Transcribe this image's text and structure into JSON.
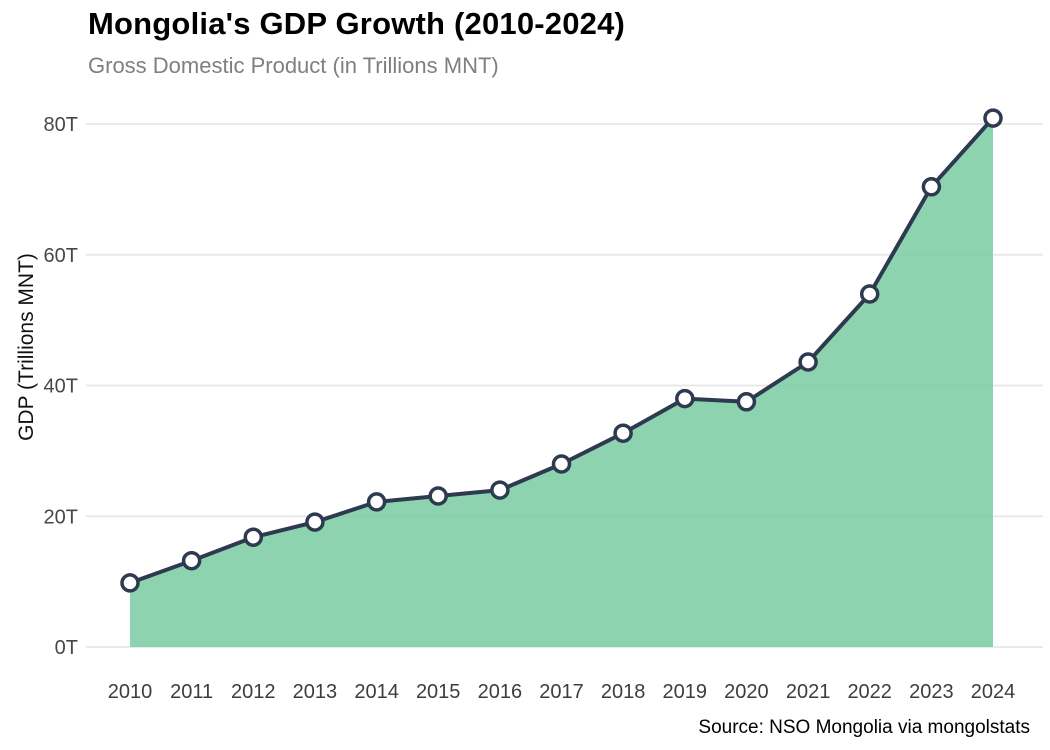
{
  "page": {
    "title": "Mongolia's GDP Growth (2010-2024)",
    "subtitle": "Gross Domestic Product (in Trillions MNT)",
    "source": "Source: NSO Mongolia via mongolstats"
  },
  "chart_data": {
    "type": "area",
    "title": "Mongolia's GDP Growth (2010-2024)",
    "subtitle": "Gross Domestic Product (in Trillions MNT)",
    "source": "Source: NSO Mongolia via mongolstats",
    "x": [
      "2010",
      "2011",
      "2012",
      "2013",
      "2014",
      "2015",
      "2016",
      "2017",
      "2018",
      "2019",
      "2020",
      "2021",
      "2022",
      "2023",
      "2024"
    ],
    "series": [
      {
        "name": "GDP (Trillions MNT)",
        "values": [
          9.8,
          13.2,
          16.8,
          19.1,
          22.2,
          23.1,
          24.0,
          28.0,
          32.7,
          38.0,
          37.5,
          43.6,
          54.0,
          70.4,
          80.9
        ]
      }
    ],
    "xlabel": "",
    "ylabel": "GDP (Trillions MNT)",
    "ylim": [
      0,
      84
    ],
    "yticks": {
      "values": [
        0,
        20,
        40,
        60,
        80
      ],
      "labels": [
        "0T",
        "20T",
        "40T",
        "60T",
        "80T"
      ]
    },
    "grid": "horizontal-only",
    "legend": "none",
    "marker": "open-circle",
    "colors": {
      "area_fill": "#7acba1",
      "line": "#2d3a4f",
      "marker_fill": "#ffffff",
      "grid": "#e7e7e7",
      "title_text": "#000000",
      "subtitle_text": "#7f7f7f",
      "tick_text": "#3d3d3d",
      "background": "#ffffff"
    }
  }
}
